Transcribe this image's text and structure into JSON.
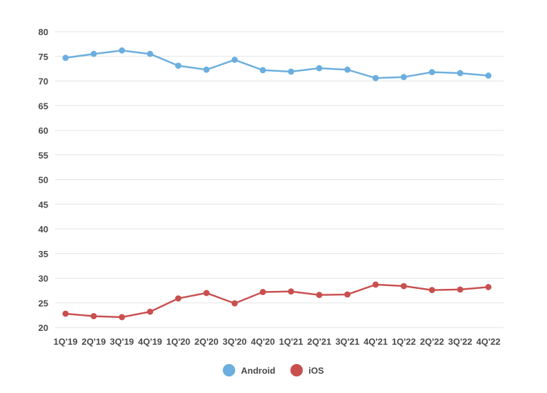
{
  "chart_data": {
    "type": "line",
    "categories": [
      "1Q'19",
      "2Q'19",
      "3Q'19",
      "4Q'19",
      "1Q'20",
      "2Q'20",
      "3Q'20",
      "4Q'20",
      "1Q'21",
      "2Q'21",
      "3Q'21",
      "4Q'21",
      "1Q'22",
      "2Q'22",
      "3Q'22",
      "4Q'22"
    ],
    "ylim": [
      20,
      80
    ],
    "yticks": [
      20,
      25,
      30,
      35,
      40,
      45,
      50,
      55,
      60,
      65,
      70,
      75,
      80
    ],
    "grid": true,
    "legend_position": "bottom-center",
    "series": [
      {
        "name": "Android",
        "color": "#6baedf",
        "values": [
          74.7,
          75.5,
          76.2,
          75.5,
          73.1,
          72.3,
          74.3,
          72.2,
          71.9,
          72.6,
          72.3,
          70.6,
          70.8,
          71.8,
          71.6,
          71.1
        ]
      },
      {
        "name": "iOS",
        "color": "#c94f4f",
        "values": [
          22.8,
          22.3,
          22.1,
          23.2,
          25.9,
          27.0,
          24.9,
          27.2,
          27.3,
          26.6,
          26.7,
          28.7,
          28.4,
          27.6,
          27.7,
          28.2
        ]
      }
    ]
  }
}
